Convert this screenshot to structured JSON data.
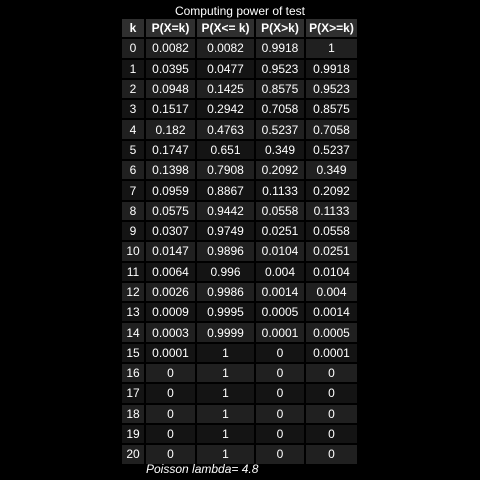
{
  "chart_data": {
    "type": "table",
    "title": "Computing power of test",
    "columns": [
      "k",
      "P(X=k)",
      "P(X<= k)",
      "P(X>k)",
      "P(X>=k)"
    ],
    "rows": [
      [
        "0",
        "0.0082",
        "0.0082",
        "0.9918",
        "1"
      ],
      [
        "1",
        "0.0395",
        "0.0477",
        "0.9523",
        "0.9918"
      ],
      [
        "2",
        "0.0948",
        "0.1425",
        "0.8575",
        "0.9523"
      ],
      [
        "3",
        "0.1517",
        "0.2942",
        "0.7058",
        "0.8575"
      ],
      [
        "4",
        "0.182",
        "0.4763",
        "0.5237",
        "0.7058"
      ],
      [
        "5",
        "0.1747",
        "0.651",
        "0.349",
        "0.5237"
      ],
      [
        "6",
        "0.1398",
        "0.7908",
        "0.2092",
        "0.349"
      ],
      [
        "7",
        "0.0959",
        "0.8867",
        "0.1133",
        "0.2092"
      ],
      [
        "8",
        "0.0575",
        "0.9442",
        "0.0558",
        "0.1133"
      ],
      [
        "9",
        "0.0307",
        "0.9749",
        "0.0251",
        "0.0558"
      ],
      [
        "10",
        "0.0147",
        "0.9896",
        "0.0104",
        "0.0251"
      ],
      [
        "11",
        "0.0064",
        "0.996",
        "0.004",
        "0.0104"
      ],
      [
        "12",
        "0.0026",
        "0.9986",
        "0.0014",
        "0.004"
      ],
      [
        "13",
        "0.0009",
        "0.9995",
        "0.0005",
        "0.0014"
      ],
      [
        "14",
        "0.0003",
        "0.9999",
        "0.0001",
        "0.0005"
      ],
      [
        "15",
        "0.0001",
        "1",
        "0",
        "0.0001"
      ],
      [
        "16",
        "0",
        "1",
        "0",
        "0"
      ],
      [
        "17",
        "0",
        "1",
        "0",
        "0"
      ],
      [
        "18",
        "0",
        "1",
        "0",
        "0"
      ],
      [
        "19",
        "0",
        "1",
        "0",
        "0"
      ],
      [
        "20",
        "0",
        "1",
        "0",
        "0"
      ]
    ],
    "footnote": "Poisson lambda= 4.8"
  },
  "colors": {
    "background": "#000000",
    "header_fill": "#2f2f2f",
    "row_fill_odd": "#202020",
    "row_fill_even": "#141414",
    "text": "#ffffff"
  }
}
